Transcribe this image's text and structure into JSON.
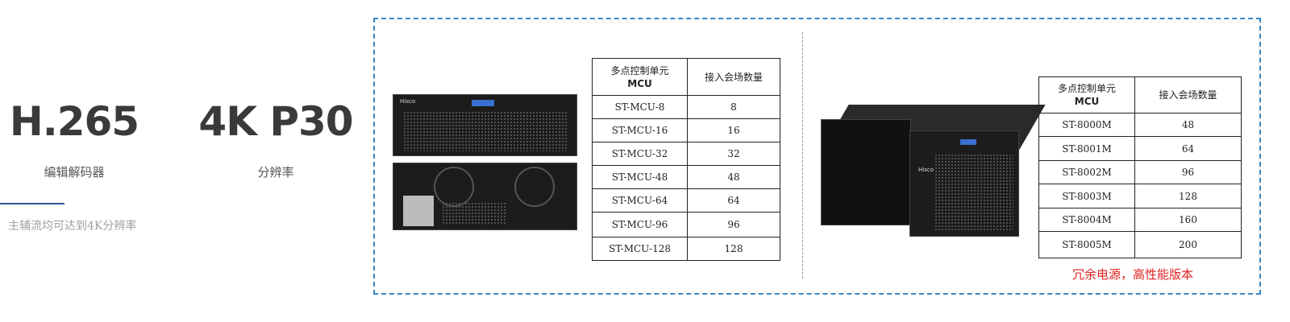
{
  "features": [
    {
      "value": "H.265",
      "label": "编辑解码器"
    },
    {
      "value": "4K P30",
      "label": "分辨率"
    }
  ],
  "note": "主辅流均可达到4K分辨率",
  "table_left": {
    "headers": [
      "多点控制单元",
      "MCU",
      "接入会场数量"
    ],
    "rows": [
      [
        "ST-MCU-8",
        "8"
      ],
      [
        "ST-MCU-16",
        "16"
      ],
      [
        "ST-MCU-32",
        "32"
      ],
      [
        "ST-MCU-48",
        "48"
      ],
      [
        "ST-MCU-64",
        "64"
      ],
      [
        "ST-MCU-96",
        "96"
      ],
      [
        "ST-MCU-128",
        "128"
      ]
    ]
  },
  "table_right": {
    "headers": [
      "多点控制单元",
      "MCU",
      "接入会场数量"
    ],
    "rows": [
      [
        "ST-8000M",
        "48"
      ],
      [
        "ST-8001M",
        "64"
      ],
      [
        "ST-8002M",
        "96"
      ],
      [
        "ST-8003M",
        "128"
      ],
      [
        "ST-8004M",
        "160"
      ],
      [
        "ST-8005M",
        "200"
      ]
    ]
  },
  "right_note": "冗余电源，高性能版本",
  "device_brand": "Hisco",
  "colors": {
    "accent": "#2a5a9a",
    "frame": "#3a86c8",
    "note_red": "#e02020"
  }
}
